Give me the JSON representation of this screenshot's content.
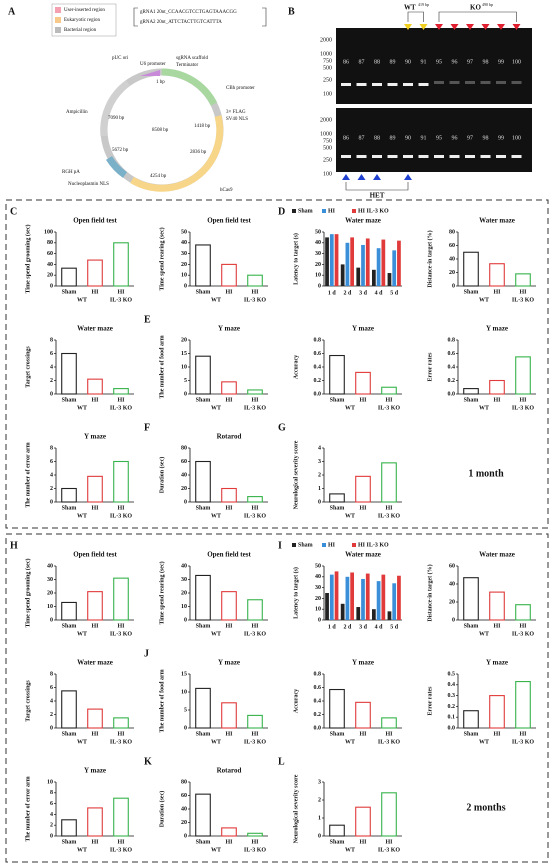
{
  "plasmid": {
    "label": "A",
    "legend": [
      "User-inserted region",
      "Eukaryotic region",
      "Bacterial region"
    ],
    "grna": [
      "gRNA1 20nt_CCAACGTCCTGAGTAAACGG",
      "gRNA2 20nt_ATTCTACTTGTCATTTA"
    ],
    "features": [
      "pUC ori",
      "U6 promoter",
      "sgRNA scaffold",
      "Terminator",
      "1 bp",
      "CBh promoter",
      "3× FLAG",
      "SV40 NLS",
      "1418 bp",
      "Ampicillin",
      "7090 bp",
      "8508 bp",
      "2836 bp",
      "5672 bp",
      "4254 bp",
      "RGH pA",
      "Nucleoplasmin NLS",
      "hCas9"
    ]
  },
  "gel": {
    "label": "B",
    "wt": "WT",
    "wt_size": "419 bp",
    "ko": "KO",
    "ko_size": "490 bp",
    "het": "HET",
    "ladder": [
      "2000",
      "1000",
      "750",
      "500",
      "250",
      "100"
    ],
    "lanes": [
      "86",
      "87",
      "88",
      "89",
      "90",
      "91",
      "95",
      "96",
      "97",
      "98",
      "99",
      "100"
    ]
  },
  "sections": [
    "1 month",
    "2 months"
  ],
  "chart_data": [
    {
      "type": "bar",
      "label": "C",
      "title": "Open field test",
      "ylabel": "Time spend grooming (sec)",
      "categories": [
        "Sham",
        "HI",
        "HI"
      ],
      "groups": [
        "WT",
        "IL-3 KO"
      ],
      "values": [
        33,
        48,
        80
      ],
      "colors": [
        "#222222",
        "#e03a3a",
        "#36b34a"
      ],
      "ylim": [
        0,
        100
      ],
      "yticks": [
        0,
        20,
        40,
        60,
        80,
        100
      ]
    },
    {
      "type": "bar",
      "title": "Open field test",
      "ylabel": "Time spend rearing (sec)",
      "categories": [
        "Sham",
        "HI",
        "HI"
      ],
      "groups": [
        "WT",
        "IL-3 KO"
      ],
      "values": [
        38,
        20,
        10
      ],
      "colors": [
        "#222222",
        "#e03a3a",
        "#36b34a"
      ],
      "ylim": [
        0,
        50
      ],
      "yticks": [
        0,
        10,
        20,
        30,
        40,
        50
      ]
    },
    {
      "type": "grouped_bar",
      "label": "D",
      "title": "Water maze",
      "ylabel": "Latency to target (s)",
      "categories": [
        "1 d",
        "2 d",
        "3 d",
        "4 d",
        "5 d"
      ],
      "series": [
        {
          "name": "Sham",
          "color": "#222222",
          "values": [
            45,
            20,
            17,
            15,
            12
          ]
        },
        {
          "name": "HI",
          "color": "#3a8fd8",
          "values": [
            48,
            40,
            38,
            35,
            33
          ]
        },
        {
          "name": "HI IL-3 KO",
          "color": "#e03a3a",
          "values": [
            48,
            45,
            44,
            43,
            42
          ]
        }
      ],
      "ylim": [
        0,
        50
      ],
      "yticks": [
        0,
        10,
        20,
        30,
        40,
        50
      ]
    },
    {
      "type": "bar",
      "title": "Water maze",
      "ylabel": "Distance-in target (%)",
      "categories": [
        "Sham",
        "HI",
        "HI"
      ],
      "groups": [
        "WT",
        "IL-3 KO"
      ],
      "values": [
        50,
        33,
        18
      ],
      "colors": [
        "#222222",
        "#e03a3a",
        "#36b34a"
      ],
      "ylim": [
        0,
        80
      ],
      "yticks": [
        0,
        20,
        40,
        60,
        80
      ]
    },
    {
      "type": "bar",
      "title": "Water maze",
      "ylabel": "Target crossings",
      "categories": [
        "Sham",
        "HI",
        "HI"
      ],
      "groups": [
        "WT",
        "IL-3 KO"
      ],
      "values": [
        6,
        2.2,
        0.8
      ],
      "colors": [
        "#222222",
        "#e03a3a",
        "#36b34a"
      ],
      "ylim": [
        0,
        8
      ],
      "yticks": [
        0,
        2,
        4,
        6,
        8
      ]
    },
    {
      "type": "bar",
      "label": "E",
      "title": "Y maze",
      "ylabel": "The number of food arm",
      "categories": [
        "Sham",
        "HI",
        "HI"
      ],
      "groups": [
        "WT",
        "IL-3 KO"
      ],
      "values": [
        14,
        4.5,
        1.5
      ],
      "colors": [
        "#222222",
        "#e03a3a",
        "#36b34a"
      ],
      "ylim": [
        0,
        20
      ],
      "yticks": [
        0,
        5,
        10,
        15,
        20
      ]
    },
    {
      "type": "bar",
      "title": "Y maze",
      "ylabel": "Accuracy",
      "categories": [
        "Sham",
        "HI",
        "HI"
      ],
      "groups": [
        "WT",
        "IL-3 KO"
      ],
      "values": [
        0.57,
        0.32,
        0.1
      ],
      "colors": [
        "#222222",
        "#e03a3a",
        "#36b34a"
      ],
      "ylim": [
        0,
        0.8
      ],
      "yticks": [
        {
          "value": 0,
          "label": "0.0"
        },
        0.2,
        0.4,
        0.6,
        0.8
      ]
    },
    {
      "type": "bar",
      "title": "Y maze",
      "ylabel": "Error rates",
      "categories": [
        "Sham",
        "HI",
        "HI"
      ],
      "groups": [
        "WT",
        "IL-3 KO"
      ],
      "values": [
        0.08,
        0.2,
        0.55
      ],
      "colors": [
        "#222222",
        "#e03a3a",
        "#36b34a"
      ],
      "ylim": [
        0,
        0.8
      ],
      "yticks": [
        {
          "value": 0,
          "label": "0.0"
        },
        0.2,
        0.4,
        0.6,
        0.8
      ]
    },
    {
      "type": "bar",
      "title": "Y maze",
      "ylabel": "The number of error arm",
      "categories": [
        "Sham",
        "HI",
        "HI"
      ],
      "groups": [
        "WT",
        "IL-3 KO"
      ],
      "values": [
        2,
        3.8,
        6
      ],
      "colors": [
        "#222222",
        "#e03a3a",
        "#36b34a"
      ],
      "ylim": [
        0,
        8
      ],
      "yticks": [
        0,
        2,
        4,
        6,
        8
      ]
    },
    {
      "type": "bar",
      "label": "F",
      "title": "Rotarod",
      "ylabel": "Duration (sec)",
      "categories": [
        "Sham",
        "HI",
        "HI"
      ],
      "groups": [
        "WT",
        "IL-3 KO"
      ],
      "values": [
        60,
        20,
        8
      ],
      "colors": [
        "#222222",
        "#e03a3a",
        "#36b34a"
      ],
      "ylim": [
        0,
        80
      ],
      "yticks": [
        0,
        20,
        40,
        60,
        80
      ]
    },
    {
      "type": "bar",
      "label": "G",
      "ylabel": "Neurological severity score",
      "categories": [
        "Sham",
        "HI",
        "HI"
      ],
      "groups": [
        "WT",
        "IL-3 KO"
      ],
      "values": [
        0.6,
        1.9,
        2.9
      ],
      "colors": [
        "#222222",
        "#e03a3a",
        "#36b34a"
      ],
      "ylim": [
        0,
        4
      ],
      "yticks": [
        0,
        1,
        2,
        3,
        4
      ]
    },
    {
      "type": "bar",
      "label": "H",
      "title": "Open field test",
      "ylabel": "Time spend grooming (sec)",
      "categories": [
        "Sham",
        "HI",
        "HI"
      ],
      "groups": [
        "WT",
        "IL-3 KO"
      ],
      "values": [
        13,
        21,
        31
      ],
      "colors": [
        "#222222",
        "#e03a3a",
        "#36b34a"
      ],
      "ylim": [
        0,
        40
      ],
      "yticks": [
        0,
        10,
        20,
        30,
        40
      ]
    },
    {
      "type": "bar",
      "title": "Open field test",
      "ylabel": "Time spend rearing (sec)",
      "categories": [
        "Sham",
        "HI",
        "HI"
      ],
      "groups": [
        "WT",
        "IL-3 KO"
      ],
      "values": [
        33,
        21,
        15
      ],
      "colors": [
        "#222222",
        "#e03a3a",
        "#36b34a"
      ],
      "ylim": [
        0,
        40
      ],
      "yticks": [
        0,
        10,
        20,
        30,
        40
      ]
    },
    {
      "type": "grouped_bar",
      "label": "I",
      "title": "Water maze",
      "ylabel": "Latency to target (s)",
      "categories": [
        "1 d",
        "2 d",
        "3 d",
        "4 d",
        "5 d"
      ],
      "series": [
        {
          "name": "Sham",
          "color": "#222222",
          "values": [
            25,
            15,
            12,
            10,
            8
          ]
        },
        {
          "name": "HI",
          "color": "#3a8fd8",
          "values": [
            42,
            40,
            38,
            36,
            34
          ]
        },
        {
          "name": "HI IL-3 KO",
          "color": "#e03a3a",
          "values": [
            45,
            44,
            43,
            42,
            41
          ]
        }
      ],
      "ylim": [
        0,
        50
      ],
      "yticks": [
        0,
        10,
        20,
        30,
        40,
        50
      ]
    },
    {
      "type": "bar",
      "title": "Water maze",
      "ylabel": "Distance-in target (%)",
      "categories": [
        "Sham",
        "HI",
        "HI"
      ],
      "groups": [
        "WT",
        "IL-3 KO"
      ],
      "values": [
        47,
        31,
        17
      ],
      "colors": [
        "#222222",
        "#e03a3a",
        "#36b34a"
      ],
      "ylim": [
        0,
        60
      ],
      "yticks": [
        0,
        20,
        40,
        60
      ]
    },
    {
      "type": "bar",
      "title": "Water maze",
      "ylabel": "Target crossings",
      "categories": [
        "Sham",
        "HI",
        "HI"
      ],
      "groups": [
        "WT",
        "IL-3 KO"
      ],
      "values": [
        5.5,
        2.8,
        1.5
      ],
      "colors": [
        "#222222",
        "#e03a3a",
        "#36b34a"
      ],
      "ylim": [
        0,
        8
      ],
      "yticks": [
        0,
        2,
        4,
        6,
        8
      ]
    },
    {
      "type": "bar",
      "label": "J",
      "title": "Y maze",
      "ylabel": "The number of food arm",
      "categories": [
        "Sham",
        "HI",
        "HI"
      ],
      "groups": [
        "WT",
        "IL-3 KO"
      ],
      "values": [
        11,
        7,
        3.5
      ],
      "colors": [
        "#222222",
        "#e03a3a",
        "#36b34a"
      ],
      "ylim": [
        0,
        15
      ],
      "yticks": [
        0,
        5,
        10,
        15
      ]
    },
    {
      "type": "bar",
      "title": "Y maze",
      "ylabel": "Accuracy",
      "categories": [
        "Sham",
        "HI",
        "HI"
      ],
      "groups": [
        "WT",
        "IL-3 KO"
      ],
      "values": [
        0.57,
        0.38,
        0.15
      ],
      "colors": [
        "#222222",
        "#e03a3a",
        "#36b34a"
      ],
      "ylim": [
        0,
        0.8
      ],
      "yticks": [
        {
          "value": 0,
          "label": "0.0"
        },
        0.2,
        0.4,
        0.6,
        0.8
      ]
    },
    {
      "type": "bar",
      "title": "Y maze",
      "ylabel": "Error rates",
      "categories": [
        "Sham",
        "HI",
        "HI"
      ],
      "groups": [
        "WT",
        "IL-3 KO"
      ],
      "values": [
        0.16,
        0.3,
        0.43
      ],
      "colors": [
        "#222222",
        "#e03a3a",
        "#36b34a"
      ],
      "ylim": [
        0,
        0.5
      ],
      "yticks": [
        {
          "value": 0,
          "label": "0.0"
        },
        0.1,
        0.2,
        0.3,
        0.4,
        0.5
      ]
    },
    {
      "type": "bar",
      "title": "Y maze",
      "ylabel": "The number of error arm",
      "categories": [
        "Sham",
        "HI",
        "HI"
      ],
      "groups": [
        "WT",
        "IL-3 KO"
      ],
      "values": [
        3,
        5.2,
        7
      ],
      "colors": [
        "#222222",
        "#e03a3a",
        "#36b34a"
      ],
      "ylim": [
        0,
        10
      ],
      "yticks": [
        0,
        2,
        4,
        6,
        8,
        10
      ]
    },
    {
      "type": "bar",
      "label": "K",
      "title": "Rotarod",
      "ylabel": "Duration (sec)",
      "categories": [
        "Sham",
        "HI",
        "HI"
      ],
      "groups": [
        "WT",
        "IL-3 KO"
      ],
      "values": [
        62,
        12,
        4
      ],
      "colors": [
        "#222222",
        "#e03a3a",
        "#36b34a"
      ],
      "ylim": [
        0,
        80
      ],
      "yticks": [
        0,
        20,
        40,
        60,
        80
      ]
    },
    {
      "type": "bar",
      "label": "L",
      "ylabel": "Neurological severity score",
      "categories": [
        "Sham",
        "HI",
        "HI"
      ],
      "groups": [
        "WT",
        "IL-3 KO"
      ],
      "values": [
        0.6,
        1.6,
        2.4
      ],
      "colors": [
        "#222222",
        "#e03a3a",
        "#36b34a"
      ],
      "ylim": [
        0,
        3
      ],
      "yticks": [
        0,
        1,
        2,
        3
      ]
    }
  ]
}
